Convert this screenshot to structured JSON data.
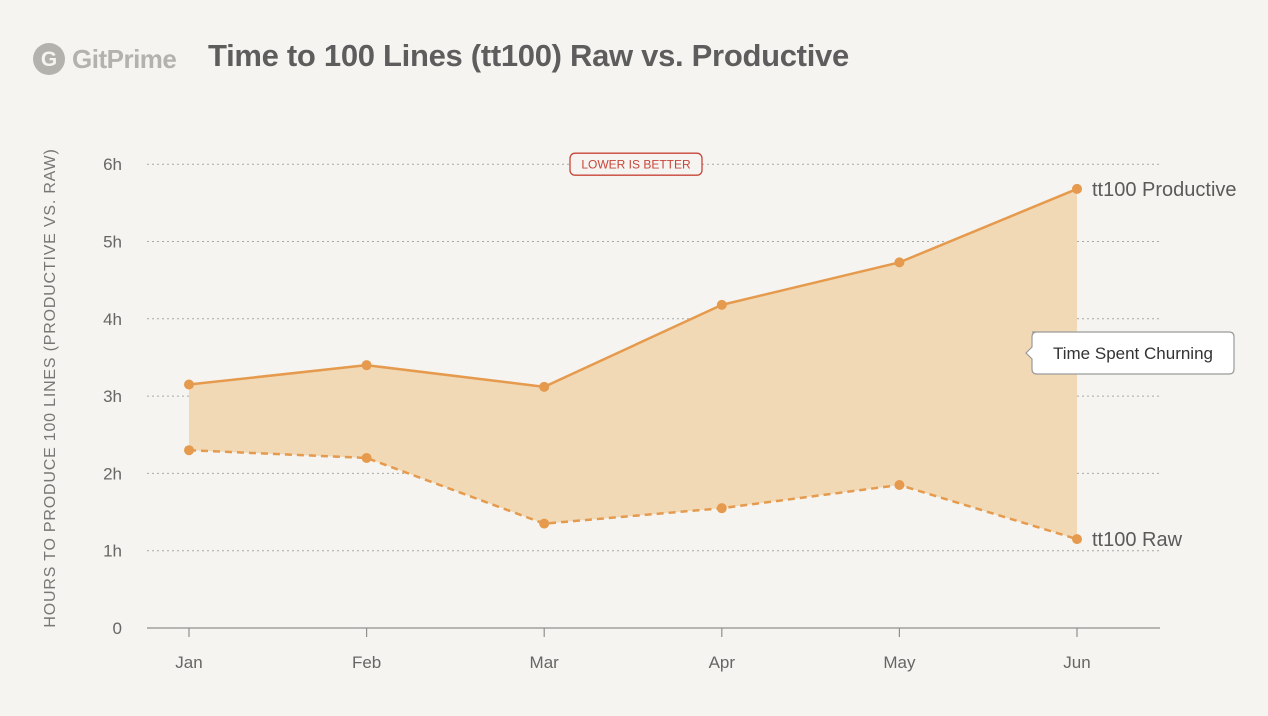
{
  "brand": {
    "name": "GitPrime",
    "logo_letter": "G",
    "logo_icon": "gitprime-logo-icon"
  },
  "colors": {
    "background": "#f5f4f0",
    "series": "#e59a4d",
    "area": "#f1d9b6",
    "text": "#666666",
    "grid": "#a8a8a8",
    "badge": "#c8453a"
  },
  "chart_data": {
    "type": "area",
    "title": "Time to 100 Lines (tt100) Raw vs. Productive",
    "ylabel": "HOURS TO PRODUCE 100 LINES (PRODUCTIVE VS. RAW)",
    "xlabel": "",
    "categories": [
      "Jan",
      "Feb",
      "Mar",
      "Apr",
      "May",
      "Jun"
    ],
    "ylim": [
      0,
      6
    ],
    "yticks": [
      {
        "value": 0,
        "label": "0"
      },
      {
        "value": 1,
        "label": "1h"
      },
      {
        "value": 2,
        "label": "2h"
      },
      {
        "value": 3,
        "label": "3h"
      },
      {
        "value": 4,
        "label": "4h"
      },
      {
        "value": 5,
        "label": "5h"
      },
      {
        "value": 6,
        "label": "6h"
      }
    ],
    "grid": true,
    "series": [
      {
        "name": "tt100 Productive",
        "style": "solid",
        "values": [
          3.15,
          3.4,
          3.12,
          4.18,
          4.73,
          5.68
        ]
      },
      {
        "name": "tt100 Raw",
        "style": "dashed",
        "values": [
          2.3,
          2.2,
          1.35,
          1.55,
          1.85,
          1.15
        ]
      }
    ],
    "annotations": {
      "badge": "LOWER IS BETTER",
      "callout": "Time Spent Churning"
    }
  }
}
